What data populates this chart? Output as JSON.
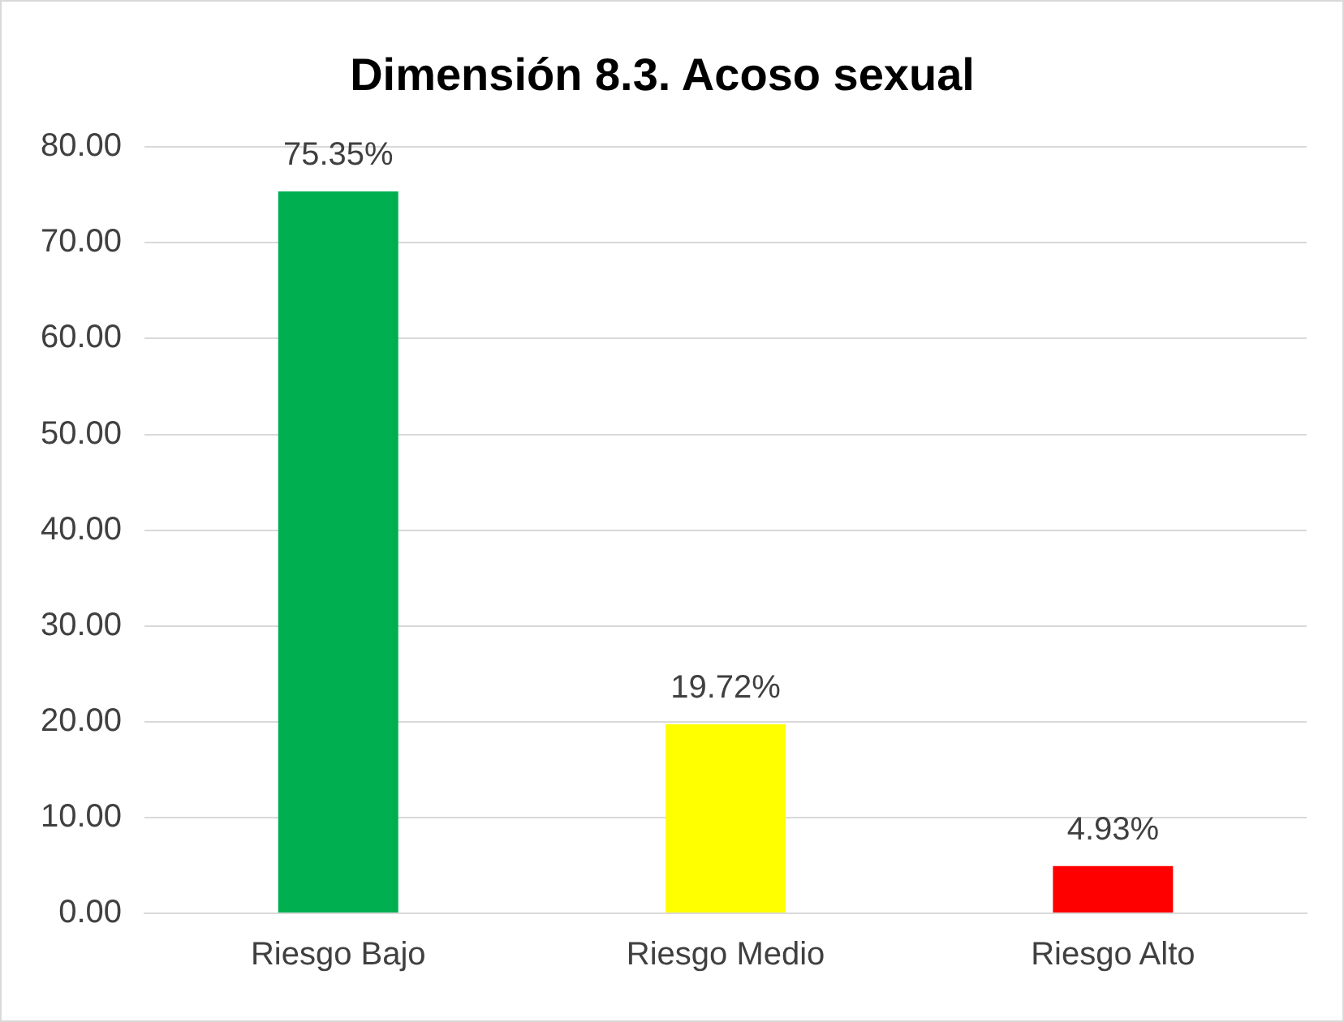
{
  "chart_data": {
    "type": "bar",
    "title": "Dimensión 8.3. Acoso sexual",
    "categories": [
      "Riesgo Bajo",
      "Riesgo Medio",
      "Riesgo Alto"
    ],
    "values": [
      75.35,
      19.72,
      4.93
    ],
    "colors": [
      "#00b050",
      "#ffff00",
      "#ff0000"
    ],
    "value_labels": [
      "75.35%",
      "19.72%",
      "4.93%"
    ],
    "ylim": [
      0,
      80
    ],
    "yticks": [
      {
        "value": 0,
        "label": "0.00"
      },
      {
        "value": 10,
        "label": "10.00"
      },
      {
        "value": 20,
        "label": "20.00"
      },
      {
        "value": 30,
        "label": "30.00"
      },
      {
        "value": 40,
        "label": "40.00"
      },
      {
        "value": 50,
        "label": "50.00"
      },
      {
        "value": 60,
        "label": "60.00"
      },
      {
        "value": 70,
        "label": "70.00"
      },
      {
        "value": 80,
        "label": "80.00"
      }
    ],
    "grid": "y"
  }
}
